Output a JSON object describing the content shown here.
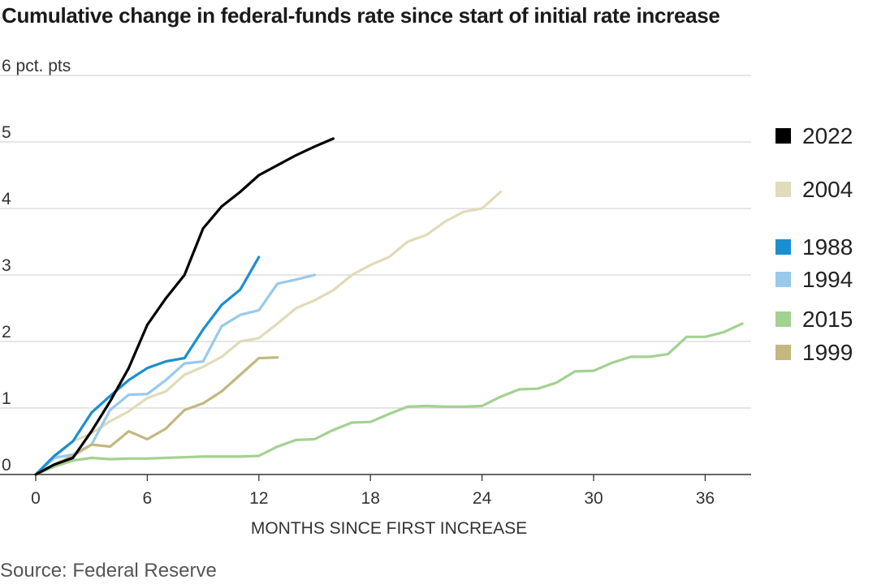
{
  "title": "Cumulative change in federal-funds rate since start of initial rate increase",
  "source": "Source: Federal Reserve",
  "chart_data": {
    "type": "line",
    "title": "Cumulative change in federal-funds rate since start of initial rate increase",
    "xlabel": "MONTHS SINCE FIRST INCREASE",
    "ylabel": "",
    "y_unit_label": "6 pct. pts",
    "xlim": [
      0,
      38.5
    ],
    "ylim": [
      0,
      6
    ],
    "x_ticks": [
      0,
      6,
      12,
      18,
      24,
      30,
      36
    ],
    "y_ticks": [
      0,
      1,
      2,
      3,
      4,
      5,
      6
    ],
    "y_tick_labels": [
      "0",
      "1",
      "2",
      "3",
      "4",
      "5",
      "6 pct. pts"
    ],
    "grid": "horizontal",
    "legend_position": "right",
    "series": [
      {
        "name": "2022",
        "color": "#000000",
        "x": [
          0,
          1,
          2,
          3,
          4,
          5,
          6,
          7,
          8,
          9,
          10,
          11,
          12,
          13,
          14,
          15,
          16
        ],
        "values": [
          0,
          0.15,
          0.25,
          0.65,
          1.1,
          1.6,
          2.25,
          2.65,
          3.0,
          3.7,
          4.03,
          4.25,
          4.5,
          4.65,
          4.8,
          4.93,
          5.05
        ]
      },
      {
        "name": "2004",
        "color": "#e0dbb8",
        "x": [
          0,
          1,
          2,
          3,
          4,
          5,
          6,
          7,
          8,
          9,
          10,
          11,
          12,
          13,
          14,
          15,
          16,
          17,
          18,
          19,
          20,
          21,
          22,
          23,
          24,
          25
        ],
        "values": [
          0,
          0.25,
          0.5,
          0.62,
          0.8,
          0.95,
          1.15,
          1.25,
          1.5,
          1.62,
          1.77,
          2.0,
          2.05,
          2.27,
          2.5,
          2.62,
          2.77,
          3.0,
          3.15,
          3.27,
          3.5,
          3.6,
          3.8,
          3.95,
          4.0,
          4.25
        ]
      },
      {
        "name": "1988",
        "color": "#1a8fd0",
        "x": [
          0,
          1,
          2,
          3,
          4,
          5,
          6,
          7,
          8,
          9,
          10,
          11,
          12
        ],
        "values": [
          0,
          0.28,
          0.5,
          0.93,
          1.18,
          1.42,
          1.6,
          1.7,
          1.75,
          2.18,
          2.55,
          2.78,
          3.27
        ]
      },
      {
        "name": "1994",
        "color": "#99c9ea",
        "x": [
          0,
          1,
          2,
          3,
          4,
          5,
          6,
          7,
          8,
          9,
          10,
          11,
          12,
          13,
          14,
          15
        ],
        "values": [
          0,
          0.25,
          0.3,
          0.45,
          0.97,
          1.2,
          1.21,
          1.42,
          1.67,
          1.7,
          2.23,
          2.4,
          2.47,
          2.87,
          2.93,
          3.0
        ]
      },
      {
        "name": "2015",
        "color": "#a3d192",
        "x": [
          0,
          1,
          2,
          3,
          4,
          5,
          6,
          7,
          8,
          9,
          10,
          11,
          12,
          13,
          14,
          15,
          16,
          17,
          18,
          19,
          20,
          21,
          22,
          23,
          24,
          25,
          26,
          27,
          28,
          29,
          30,
          31,
          32,
          33,
          34,
          35,
          36,
          37,
          38
        ],
        "values": [
          0,
          0.12,
          0.21,
          0.25,
          0.23,
          0.24,
          0.24,
          0.25,
          0.26,
          0.27,
          0.27,
          0.27,
          0.28,
          0.42,
          0.52,
          0.53,
          0.67,
          0.78,
          0.79,
          0.91,
          1.02,
          1.03,
          1.02,
          1.02,
          1.03,
          1.17,
          1.28,
          1.29,
          1.38,
          1.55,
          1.56,
          1.68,
          1.77,
          1.77,
          1.81,
          2.07,
          2.07,
          2.14,
          2.27
        ]
      },
      {
        "name": "1999",
        "color": "#c2b880",
        "x": [
          0,
          1,
          2,
          3,
          4,
          5,
          6,
          7,
          8,
          9,
          10,
          11,
          12,
          13
        ],
        "values": [
          0,
          0.15,
          0.28,
          0.45,
          0.42,
          0.65,
          0.53,
          0.69,
          0.97,
          1.07,
          1.25,
          1.5,
          1.75,
          1.76
        ]
      }
    ],
    "legend": [
      {
        "name": "2022",
        "color": "#000000"
      },
      {
        "name": "2004",
        "color": "#e0dbb8"
      },
      {
        "name": "1988",
        "color": "#1a8fd0"
      },
      {
        "name": "1994",
        "color": "#99c9ea"
      },
      {
        "name": "2015",
        "color": "#a3d192"
      },
      {
        "name": "1999",
        "color": "#c2b880"
      }
    ]
  }
}
